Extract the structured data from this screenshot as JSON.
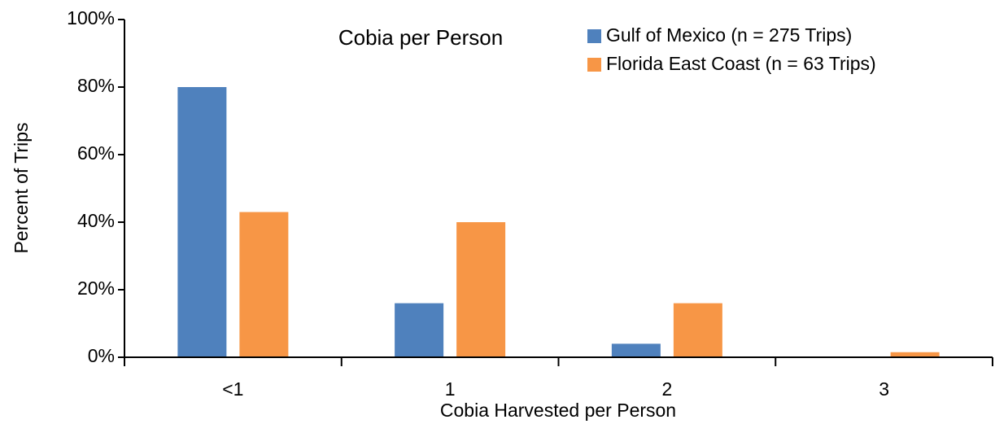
{
  "chart_data": {
    "type": "bar",
    "title": "Cobia per Person",
    "x_label": "Cobia Harvested per Person",
    "y_label": "Percent of Trips",
    "categories": [
      "<1",
      "1",
      "2",
      "3"
    ],
    "series": [
      {
        "name": "Gulf of Mexico (n = 275 Trips)",
        "color": "#4f81bd",
        "values": [
          80,
          16,
          4,
          0
        ]
      },
      {
        "name": "Florida East Coast (n = 63 Trips)",
        "color": "#f79646",
        "values": [
          43,
          40,
          16,
          1.5
        ]
      }
    ],
    "ylim": [
      0,
      100
    ],
    "yticks": [
      {
        "value": 0,
        "label": "0%"
      },
      {
        "value": 20,
        "label": "20%"
      },
      {
        "value": 40,
        "label": "40%"
      },
      {
        "value": 60,
        "label": "60%"
      },
      {
        "value": 80,
        "label": "80%"
      },
      {
        "value": 100,
        "label": "100%"
      }
    ],
    "grid": false,
    "legend": "upper right"
  }
}
